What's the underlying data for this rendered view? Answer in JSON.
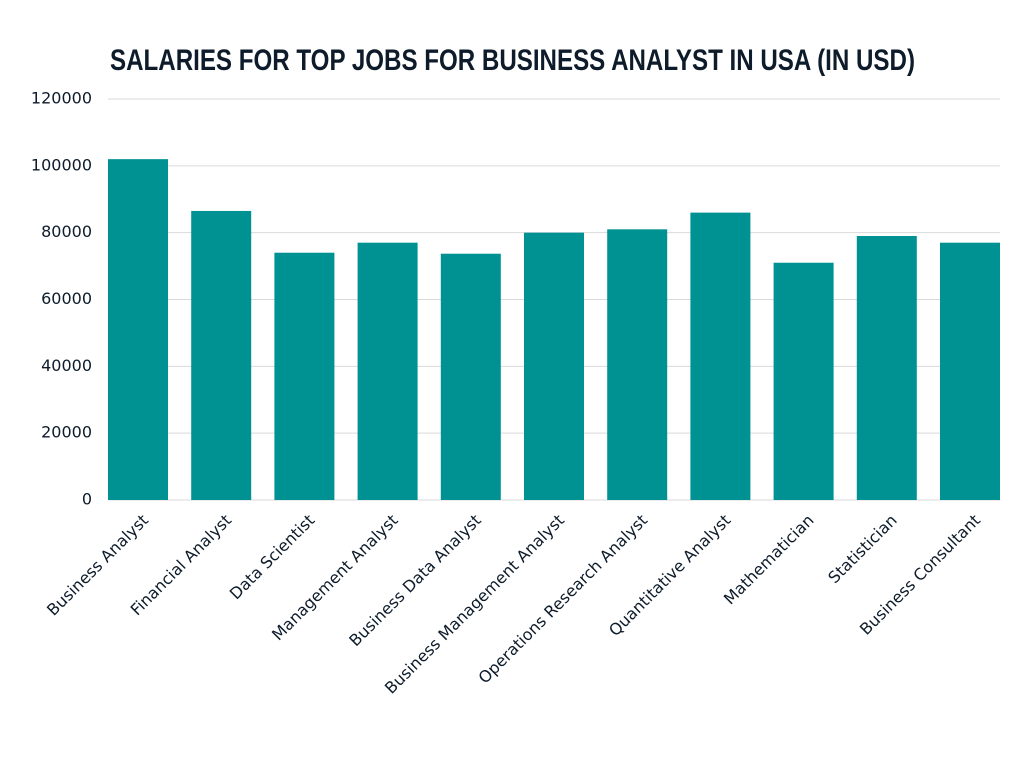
{
  "chart_data": {
    "type": "bar",
    "title": "SALARIES FOR TOP JOBS FOR BUSINESS ANALYST IN USA (IN USD)",
    "categories": [
      "Business Analyst",
      "Financial Analyst",
      "Data Scientist",
      "Management Analyst",
      "Business Data Analyst",
      "Business Management Analyst",
      "Operations Research Analyst",
      "Quantitative Analyst",
      "Mathematician",
      "Statistician",
      "Business Consultant"
    ],
    "values": [
      102000,
      86500,
      74000,
      77000,
      73700,
      80000,
      81000,
      86000,
      71000,
      79000,
      77000
    ],
    "color": "#009292",
    "ylim": [
      0,
      120000
    ],
    "yticks": [
      0,
      20000,
      40000,
      60000,
      80000,
      100000,
      120000
    ],
    "grid": true
  }
}
